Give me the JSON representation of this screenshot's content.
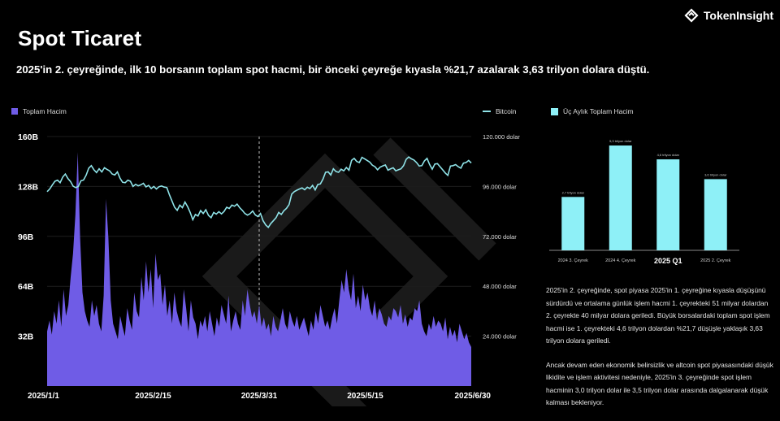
{
  "brand": {
    "name": "TokenInsight"
  },
  "page": {
    "title": "Spot Ticaret",
    "subtitle": "2025'in 2. çeyreğinde, ilk 10 borsanın toplam spot hacmi, bir önceki çeyreğe kıyasla %21,7 azalarak 3,63 trilyon dolara düştü."
  },
  "colors": {
    "volume": "#6f5ce6",
    "bitcoin": "#8fe3e8",
    "quarterly": "#8ef0f7"
  },
  "chart_data": [
    {
      "type": "area",
      "legend": {
        "volume": "Toplam Hacim",
        "bitcoin": "Bitcoin"
      },
      "x_ticks": [
        "2025/1/1",
        "2025/2/15",
        "2025/3/31",
        "2025/5/15",
        "2025/6/30"
      ],
      "y_left_ticks": [
        "32B",
        "64B",
        "96B",
        "128B",
        "160B"
      ],
      "y_left_range": [
        0,
        160
      ],
      "y_right_ticks": [
        "24.000 dolar",
        "48.000 dolar",
        "72.000 dolar",
        "96.000 dolar",
        "120.000 dolar"
      ],
      "y_right_range": [
        0,
        120000
      ],
      "series": [
        {
          "name": "Toplam Hacim",
          "axis": "left",
          "unit": "B",
          "values": [
            35,
            42,
            33,
            48,
            40,
            55,
            38,
            62,
            45,
            52,
            70,
            85,
            110,
            150,
            95,
            60,
            48,
            42,
            38,
            55,
            45,
            52,
            40,
            35,
            58,
            120,
            95,
            55,
            40,
            35,
            30,
            45,
            38,
            32,
            50,
            42,
            36,
            60,
            48,
            44,
            70,
            55,
            80,
            60,
            75,
            50,
            85,
            68,
            72,
            52,
            65,
            45,
            55,
            40,
            60,
            48,
            42,
            38,
            62,
            50,
            35,
            55,
            44,
            40,
            30,
            42,
            38,
            45,
            35,
            48,
            40,
            32,
            44,
            38,
            52,
            46,
            40,
            58,
            35,
            42,
            48,
            40,
            36,
            55,
            45,
            62,
            52,
            44,
            48,
            40,
            52,
            38,
            44,
            36,
            40,
            32,
            45,
            38,
            35,
            42,
            50,
            40,
            36,
            48,
            42,
            38,
            45,
            36,
            40,
            44,
            38,
            32,
            42,
            36,
            48,
            40,
            52,
            45,
            38,
            42,
            36,
            44,
            50,
            40,
            55,
            68,
            60,
            75,
            62,
            55,
            72,
            50,
            58,
            48,
            65,
            55,
            60,
            50,
            45,
            55,
            42,
            50,
            46,
            40,
            38,
            45,
            42,
            50,
            48,
            44,
            52,
            40,
            46,
            38,
            44,
            42,
            50,
            48,
            55,
            40,
            35,
            32,
            40,
            36,
            45,
            38,
            42,
            40,
            35,
            44,
            30,
            38,
            32,
            36,
            28,
            40,
            35,
            30,
            34,
            28,
            25
          ]
        },
        {
          "name": "Bitcoin",
          "axis": "right",
          "values": [
            93500,
            94800,
            96700,
            98500,
            99000,
            97800,
            100500,
            102000,
            99800,
            98400,
            96100,
            95400,
            96000,
            98700,
            99100,
            101400,
            104800,
            106000,
            104000,
            102700,
            104500,
            103000,
            105000,
            104200,
            103500,
            102000,
            101500,
            103000,
            100000,
            98000,
            97800,
            99000,
            98500,
            96000,
            97000,
            96300,
            96800,
            97500,
            95800,
            96500,
            95000,
            96000,
            94800,
            95900,
            96200,
            95700,
            95500,
            92000,
            89000,
            86000,
            84500,
            87000,
            85800,
            88500,
            86300,
            83500,
            80000,
            82500,
            81800,
            84400,
            83000,
            84800,
            82100,
            81000,
            83500,
            82700,
            83900,
            82800,
            84000,
            86000,
            85400,
            87000,
            86500,
            87500,
            85800,
            84500,
            83000,
            82200,
            82900,
            84200,
            82300,
            81500,
            83000,
            79500,
            77500,
            76300,
            78200,
            79600,
            81000,
            83500,
            82500,
            84300,
            85500,
            87300,
            92300,
            93500,
            94200,
            94800,
            95300,
            94400,
            95600,
            95000,
            96500,
            94300,
            96900,
            97200,
            99500,
            102800,
            103000,
            101500,
            104500,
            103200,
            102800,
            104300,
            103500,
            105100,
            103800,
            108500,
            109500,
            108000,
            107500,
            110000,
            109300,
            108500,
            107700,
            106200,
            105500,
            104000,
            105300,
            105900,
            106300,
            103800,
            104500,
            105000,
            103500,
            104000,
            104500,
            106000,
            109000,
            110200,
            109300,
            108700,
            107500,
            105800,
            106000,
            108300,
            109500,
            106500,
            104300,
            106800,
            107000,
            105500,
            104000,
            102500,
            101300,
            105800,
            106000,
            106500,
            105500,
            104800,
            107200,
            107500,
            108500,
            107300
          ]
        }
      ]
    },
    {
      "type": "bar",
      "title": "Üç Aylık Toplam Hacim",
      "categories": [
        "2024 3. Çeyrek",
        "2024 4. Çeyrek",
        "2025 Q1",
        "2025 2. Çeyrek"
      ],
      "values": [
        2.7,
        5.3,
        4.6,
        3.6
      ],
      "value_labels": [
        "2,7 trilyon dolar",
        "5,3 trilyon dolar",
        "4,6 trilyon dolar",
        "3,6 trilyon dolar"
      ],
      "ylim": [
        0,
        6
      ]
    }
  ],
  "notes": {
    "p1": "2025'in 2. çeyreğinde, spot piyasa 2025'in 1. çeyreğine kıyasla düşüşünü sürdürdü ve ortalama günlük işlem hacmi 1. çeyrekteki 51 milyar dolardan 2. çeyrekte 40 milyar dolara geriledi. Büyük borsalardaki toplam spot işlem hacmi ise 1. çeyrekteki 4,6 trilyon dolardan %21,7 düşüşle yaklaşık 3,63 trilyon dolara geriledi.",
    "p2": "Ancak devam eden ekonomik belirsizlik ve altcoin spot piyasasındaki düşük likidite ve işlem aktivitesi nedeniyle, 2025'in 3. çeyreğinde spot işlem hacminin 3,0 trilyon dolar ile 3,5 trilyon dolar arasında dalgalanarak düşük kalması bekleniyor."
  }
}
